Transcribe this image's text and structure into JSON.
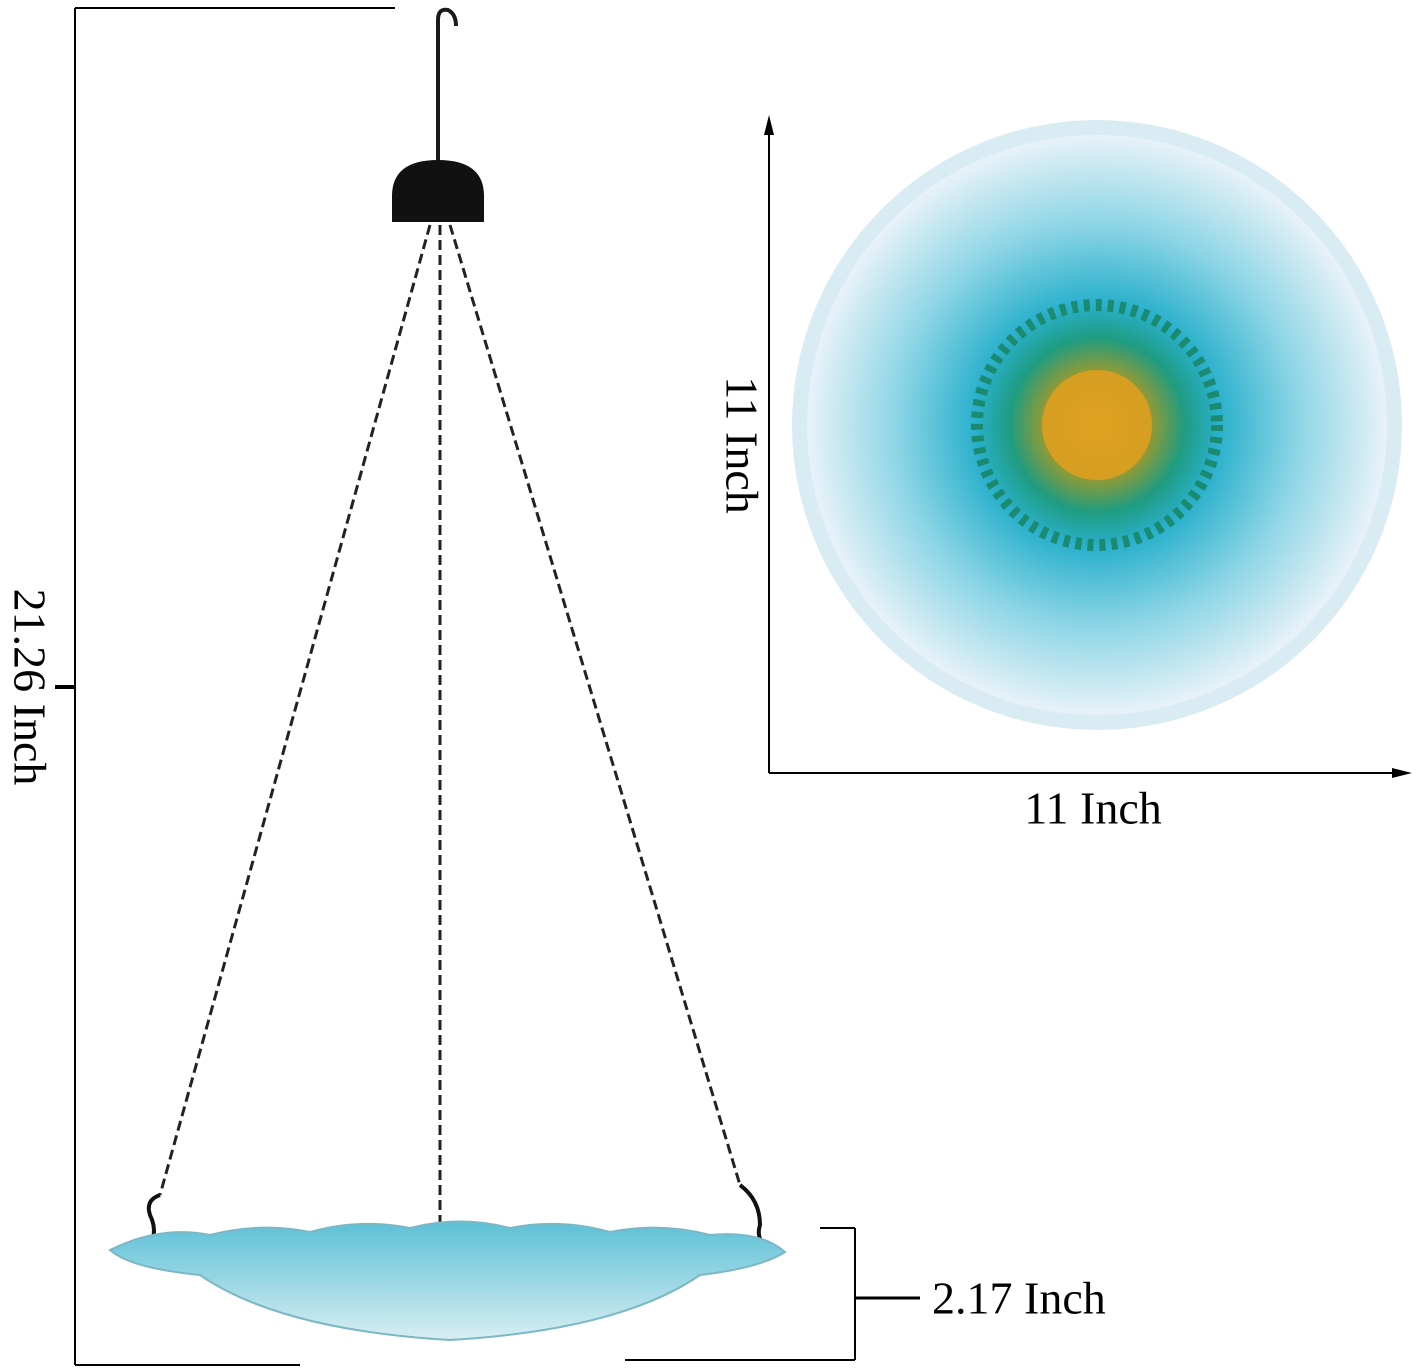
{
  "dimensions": {
    "total_height": "21.26 Inch",
    "flower_height": "11 Inch",
    "flower_width": "11 Inch",
    "bowl_depth": "2.17 Inch"
  },
  "colors": {
    "bowl": "#8fd0dc",
    "petal_blue": "#3ab4d0",
    "center_green": "#1f9c80",
    "center_yellow": "#e0a020",
    "metal": "#1a1a1a"
  }
}
